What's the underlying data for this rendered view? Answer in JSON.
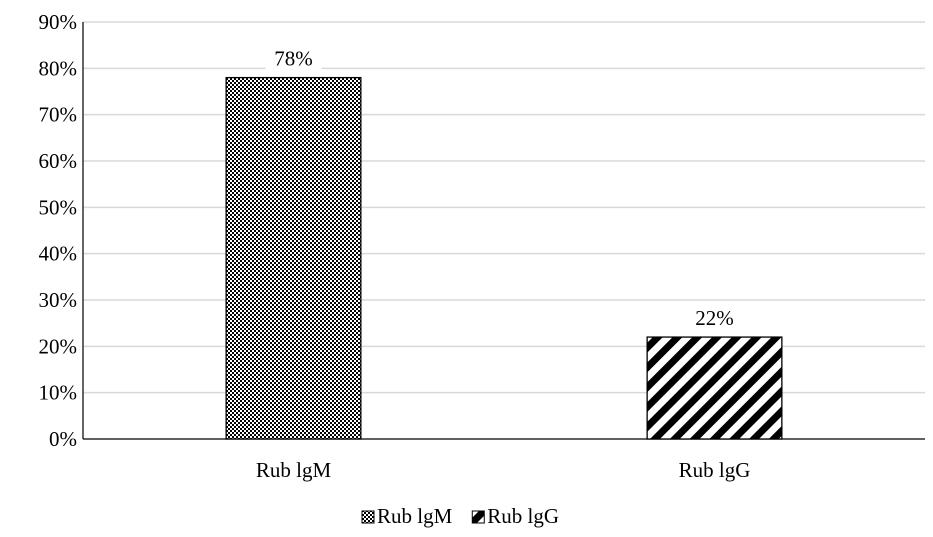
{
  "chart_data": {
    "type": "bar",
    "title": "",
    "xlabel": "",
    "ylabel": "",
    "categories": [
      "Rub lgM",
      "Rub lgG"
    ],
    "values": [
      78,
      22
    ],
    "value_labels": [
      "78%",
      "22%"
    ],
    "ylim": [
      0,
      90
    ],
    "yticks": [
      0,
      10,
      20,
      30,
      40,
      50,
      60,
      70,
      80,
      90
    ],
    "ytick_labels": [
      "0%",
      "10%",
      "20%",
      "30%",
      "40%",
      "50%",
      "60%",
      "70%",
      "80%",
      "90%"
    ],
    "grid": true,
    "grid_color": "#d9d9d9",
    "legend": {
      "placement": "bottom",
      "entries": [
        "Rub lgM",
        "Rub lgG"
      ]
    },
    "patterns": [
      "checker-dots",
      "diagonal-stripes"
    ]
  }
}
